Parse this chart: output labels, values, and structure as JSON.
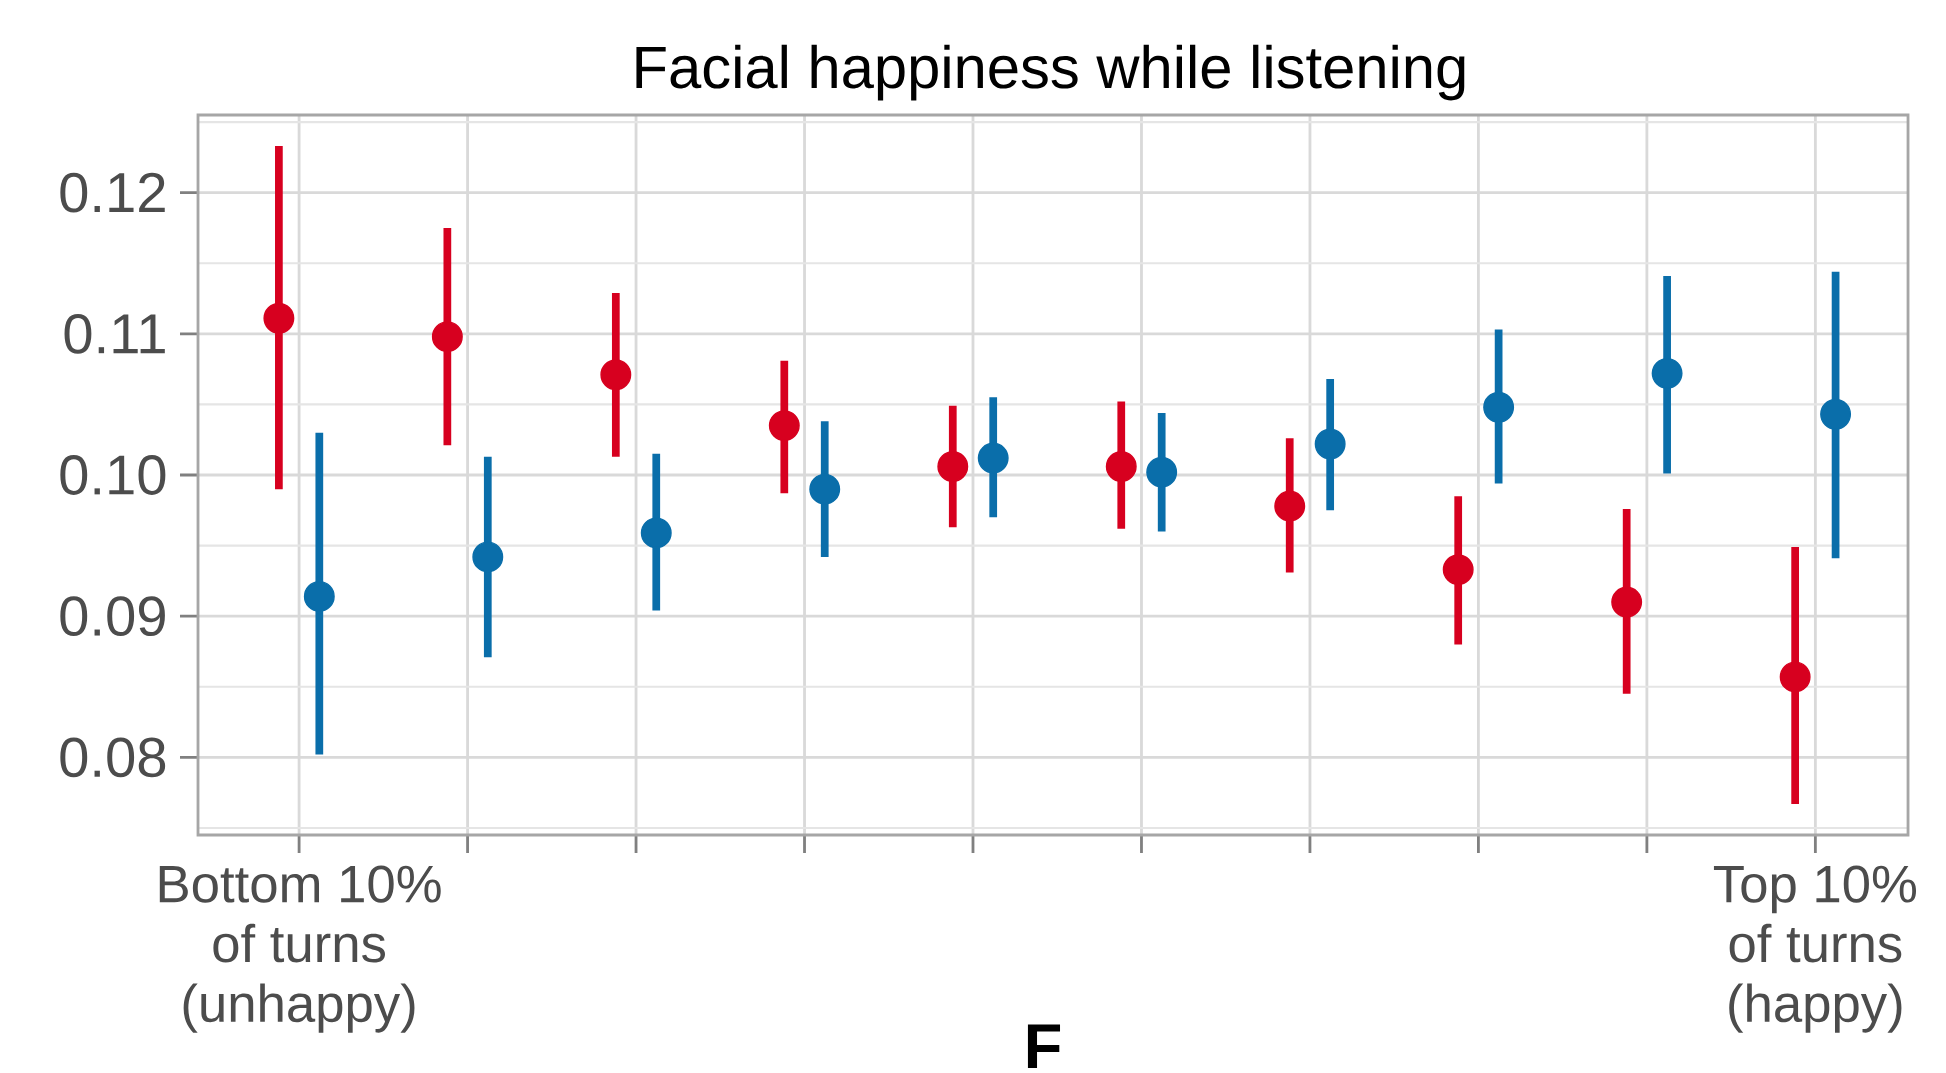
{
  "chart_data": {
    "type": "scatter",
    "title": "Facial happiness while listening",
    "categories": [
      "Bottom 10% of turns (unhappy)",
      null,
      null,
      null,
      null,
      null,
      null,
      null,
      null,
      "Top 10% of turns (happy)"
    ],
    "series": [
      {
        "color": "#d7001f",
        "values": [
          0.1111,
          0.1098,
          0.1071,
          0.1035,
          0.1006,
          0.1006,
          0.0978,
          0.0933,
          0.091,
          0.0857
        ],
        "errors": [
          [
            0.099,
            0.1233
          ],
          [
            0.1021,
            0.1175
          ],
          [
            0.1013,
            0.1129
          ],
          [
            0.0987,
            0.1081
          ],
          [
            0.0963,
            0.1049
          ],
          [
            0.0962,
            0.1052
          ],
          [
            0.0931,
            0.1026
          ],
          [
            0.088,
            0.0985
          ],
          [
            0.0845,
            0.0976
          ],
          [
            0.0767,
            0.0949
          ]
        ]
      },
      {
        "color": "#0a6eaa",
        "values": [
          0.0914,
          0.0942,
          0.0959,
          0.099,
          0.1012,
          0.1002,
          0.1022,
          0.1048,
          0.1072,
          0.1043
        ],
        "errors": [
          [
            0.0802,
            0.103
          ],
          [
            0.0871,
            0.1013
          ],
          [
            0.0904,
            0.1015
          ],
          [
            0.0942,
            0.1038
          ],
          [
            0.097,
            0.1055
          ],
          [
            0.096,
            0.1044
          ],
          [
            0.0975,
            0.1068
          ],
          [
            0.0994,
            0.1103
          ],
          [
            0.1001,
            0.1141
          ],
          [
            0.0941,
            0.1144
          ]
        ]
      }
    ],
    "ylim": [
      0.0745,
      0.1255
    ],
    "yticks": [
      {
        "value": 0.075,
        "label": null
      },
      0.08,
      {
        "value": 0.085,
        "label": null
      },
      0.09,
      {
        "value": 0.095,
        "label": null
      },
      {
        "value": 0.1,
        "label": "0.10"
      },
      {
        "value": 0.105,
        "label": null
      },
      0.11,
      {
        "value": 0.115,
        "label": null
      },
      0.12,
      {
        "value": 0.125,
        "label": null
      }
    ],
    "grid": true,
    "marker": "circle",
    "annotations": [
      "F"
    ]
  }
}
